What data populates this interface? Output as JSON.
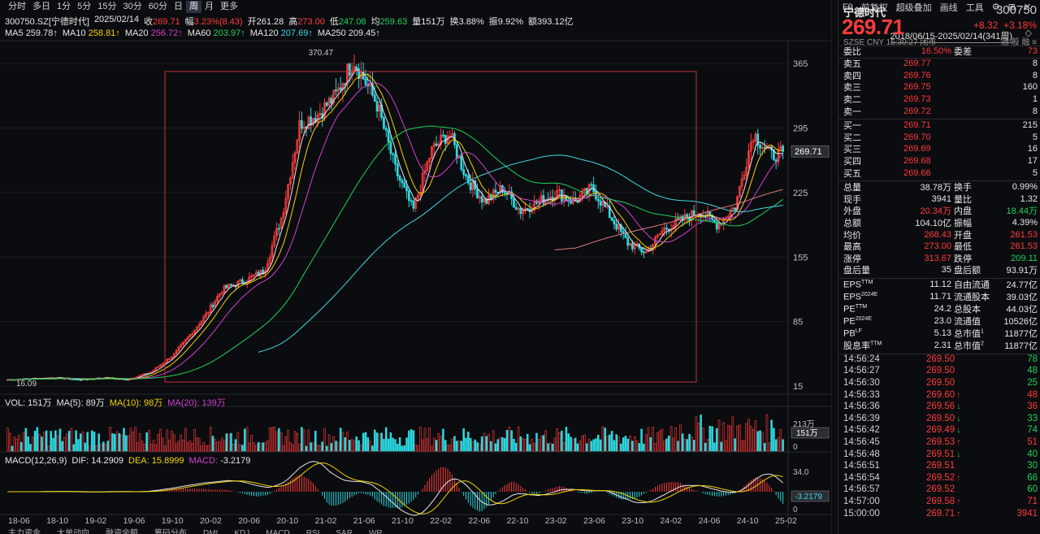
{
  "toolbar": {
    "timeframes": [
      "分时",
      "多日",
      "1分",
      "5分",
      "15分",
      "30分",
      "60分",
      "日",
      "周",
      "月",
      "更多"
    ],
    "active_timeframe": "周",
    "right": [
      "F9",
      "前复权",
      "超级叠加",
      "画线",
      "工具"
    ],
    "icons": [
      "gear-icon",
      "settings-icon",
      "close-icon"
    ]
  },
  "info": {
    "code_name": "300750.SZ[宁德时代]",
    "date": "2025/02/14",
    "close_label": "收",
    "close": "269.71",
    "amp_label": "幅",
    "amp": "3.23%(8.43)",
    "open_label": "开",
    "open": "261.28",
    "high_label": "高",
    "high": "273.00",
    "low_label": "低",
    "low": "247.08",
    "avg_label": "均",
    "avg": "259.63",
    "vol_label": "量",
    "vol": "151万",
    "turnover_label": "换",
    "turnover": "3.88%",
    "swing_label": "振",
    "swing": "9.92%",
    "amount_label": "额",
    "amount": "393.12亿"
  },
  "ma_line": {
    "ma5_label": "MA5",
    "ma5": "259.78↑",
    "ma10_label": "MA10",
    "ma10": "258.81↑",
    "ma20_label": "MA20",
    "ma20": "256.72↑",
    "ma60_label": "MA60",
    "ma60": "203.97↑",
    "ma120_label": "MA120",
    "ma120": "207.69↑",
    "ma250_label": "MA250",
    "ma250": "209.45↑"
  },
  "date_range": "2018/06/15-2025/02/14(341周)",
  "main_toggle": "◇",
  "price_axis": [
    "365",
    "295",
    "225",
    "155",
    "85",
    "15"
  ],
  "price_axis_ticks": [
    365,
    295,
    225,
    155,
    85,
    15
  ],
  "price_tag": "269.71",
  "peak_label": "370.47",
  "low_label": "16.09",
  "vol_line": {
    "vol_label": "VOL:",
    "vol": "151万",
    "ma5_label": "MA(5):",
    "ma5": "89万",
    "ma10_label": "MA(10):",
    "ma10": "98万",
    "ma20_label": "MA(20):",
    "ma20": "139万"
  },
  "vol_axis": [
    "213万",
    "0"
  ],
  "vol_tag": "151万",
  "macd_line": {
    "macd_label": "MACD(12,26,9)",
    "dif_label": "DIF:",
    "dif": "14.2909",
    "dea_label": "DEA:",
    "dea": "15.8999",
    "macd2_label": "MACD:",
    "macd": "-3.2179"
  },
  "macd_axis": [
    "34.0",
    "0"
  ],
  "macd_tag": "-3.2179",
  "x_axis": [
    "18-06",
    "18-10",
    "19-02",
    "19-06",
    "19-10",
    "20-02",
    "20-06",
    "20-10",
    "21-02",
    "21-06",
    "21-10",
    "22-02",
    "22-06",
    "22-10",
    "23-02",
    "23-06",
    "23-10",
    "24-02",
    "24-06",
    "24-10",
    "25-02"
  ],
  "bottom_tabs": [
    "主力资金",
    "大单动向",
    "融资余额",
    "筹码分布",
    "DMI",
    "KDJ",
    "MACD",
    "RSI",
    "SAR",
    "WR"
  ],
  "quote": {
    "name": "宁德时代",
    "code": "300750",
    "price": "269.71",
    "change": "+8.32",
    "change_pct": "+3.18%",
    "exchange": "SZSE",
    "currency": "CNY",
    "time": "15:30:27",
    "status": "闭市",
    "flags": "通 般 融 ≡",
    "commit_ratio_label": "委比",
    "commit_ratio": "16.50%",
    "commit_diff_label": "委差",
    "commit_diff": "73",
    "asks": [
      {
        "label": "卖五",
        "price": "269.77",
        "vol": "8"
      },
      {
        "label": "卖四",
        "price": "269.76",
        "vol": "8"
      },
      {
        "label": "卖三",
        "price": "269.75",
        "vol": "160"
      },
      {
        "label": "卖二",
        "price": "269.73",
        "vol": "1"
      },
      {
        "label": "卖一",
        "price": "269.72",
        "vol": "8"
      }
    ],
    "bids": [
      {
        "label": "买一",
        "price": "269.71",
        "vol": "215"
      },
      {
        "label": "买二",
        "price": "269.70",
        "vol": "5"
      },
      {
        "label": "买三",
        "price": "269.69",
        "vol": "16"
      },
      {
        "label": "买四",
        "price": "269.68",
        "vol": "17"
      },
      {
        "label": "买五",
        "price": "269.66",
        "vol": "5"
      }
    ],
    "stats": [
      {
        "l1": "总量",
        "v1": "38.78万",
        "c1": "white",
        "l2": "换手",
        "v2": "0.99%",
        "c2": "white"
      },
      {
        "l1": "现手",
        "v1": "3941",
        "c1": "white",
        "l2": "量比",
        "v2": "1.32",
        "c2": "white"
      },
      {
        "l1": "外盘",
        "v1": "20.34万",
        "c1": "red",
        "l2": "内盘",
        "v2": "18.44万",
        "c2": "green"
      },
      {
        "l1": "总额",
        "v1": "104.10亿",
        "c1": "white",
        "l2": "振幅",
        "v2": "4.39%",
        "c2": "white"
      },
      {
        "l1": "均价",
        "v1": "268.43",
        "c1": "red",
        "l2": "开盘",
        "v2": "261.53",
        "c2": "red"
      },
      {
        "l1": "最高",
        "v1": "273.00",
        "c1": "red",
        "l2": "最低",
        "v2": "261.53",
        "c2": "red"
      },
      {
        "l1": "涨停",
        "v1": "313.67",
        "c1": "red",
        "l2": "跌停",
        "v2": "209.11",
        "c2": "green"
      },
      {
        "l1": "盘后量",
        "v1": "35",
        "c1": "white",
        "l2": "盘后额",
        "v2": "93.91万",
        "c2": "white"
      }
    ],
    "fundamentals": [
      {
        "l1": "EPS",
        "s1": "TTM",
        "v1": "11.12",
        "l2": "自由流通",
        "s2": "",
        "v2": "24.77亿"
      },
      {
        "l1": "EPS",
        "s1": "2024E",
        "v1": "11.71",
        "l2": "流通股本",
        "s2": "",
        "v2": "39.03亿"
      },
      {
        "l1": "PE",
        "s1": "TTM",
        "v1": "24.2",
        "l2": "总股本",
        "s2": "",
        "v2": "44.03亿"
      },
      {
        "l1": "PE",
        "s1": "2024E",
        "v1": "23.0",
        "l2": "流通值",
        "s2": "",
        "v2": "10526亿"
      },
      {
        "l1": "PB",
        "s1": "LF",
        "v1": "5.13",
        "l2": "总市值",
        "s2": "1",
        "v2": "11877亿"
      },
      {
        "l1": "股息率",
        "s1": "TTM",
        "v1": "2.31",
        "l2": "总市值",
        "s2": "2",
        "v2": "11877亿"
      }
    ],
    "ticks": [
      {
        "time": "14:56:24",
        "price": "269.50",
        "arrow": "",
        "vol": "78",
        "vc": "green"
      },
      {
        "time": "14:56:27",
        "price": "269.50",
        "arrow": "",
        "vol": "48",
        "vc": "green"
      },
      {
        "time": "14:56:30",
        "price": "269.50",
        "arrow": "",
        "vol": "25",
        "vc": "green"
      },
      {
        "time": "14:56:33",
        "price": "269.60",
        "arrow": "↑",
        "vol": "48",
        "vc": "red"
      },
      {
        "time": "14:56:36",
        "price": "269.56",
        "arrow": "↓",
        "vol": "36",
        "vc": "red"
      },
      {
        "time": "14:56:39",
        "price": "269.50",
        "arrow": "↓",
        "vol": "33",
        "vc": "green"
      },
      {
        "time": "14:56:42",
        "price": "269.49",
        "arrow": "↓",
        "vol": "74",
        "vc": "green"
      },
      {
        "time": "14:56:45",
        "price": "269.53",
        "arrow": "↑",
        "vol": "51",
        "vc": "red"
      },
      {
        "time": "14:56:48",
        "price": "269.51",
        "arrow": "↓",
        "vol": "40",
        "vc": "green"
      },
      {
        "time": "14:56:51",
        "price": "269.51",
        "arrow": "",
        "vol": "30",
        "vc": "green"
      },
      {
        "time": "14:56:54",
        "price": "269.52",
        "arrow": "↑",
        "vol": "66",
        "vc": "green"
      },
      {
        "time": "14:56:57",
        "price": "269.52",
        "arrow": "",
        "vol": "60",
        "vc": "green"
      },
      {
        "time": "14:57:00",
        "price": "269.58",
        "arrow": "↑",
        "vol": "71",
        "vc": "red"
      },
      {
        "time": "15:00:00",
        "price": "269.71",
        "arrow": "↑",
        "vol": "3941",
        "vc": "red"
      }
    ]
  },
  "colors": {
    "up": "#ff3b3b",
    "down": "#1fd15a",
    "ma5": "#e8e8e8",
    "ma10": "#f5d300",
    "ma20": "#d33fd3",
    "ma60": "#1fd15a",
    "ma120": "#3fd7e0",
    "ma250": "#e07b7b"
  },
  "chart_data": {
    "type": "line",
    "x_label_points": [
      "18-06",
      "18-10",
      "19-02",
      "19-06",
      "19-10",
      "20-02",
      "20-06",
      "20-10",
      "21-02",
      "21-06",
      "21-10",
      "22-02",
      "22-06",
      "22-10",
      "23-02",
      "23-06",
      "23-10",
      "24-02",
      "24-06",
      "24-10",
      "25-02"
    ],
    "weekly_close_estimate": [
      22,
      24,
      22,
      25,
      21,
      28,
      38,
      55,
      85,
      140,
      210,
      300,
      360,
      260,
      240,
      230,
      215,
      205,
      220,
      160,
      180,
      175,
      270,
      269.71
    ],
    "ylim": [
      15,
      370.47
    ],
    "annotations": {
      "high": 370.47,
      "low": 16.09,
      "last": 269.71
    }
  }
}
